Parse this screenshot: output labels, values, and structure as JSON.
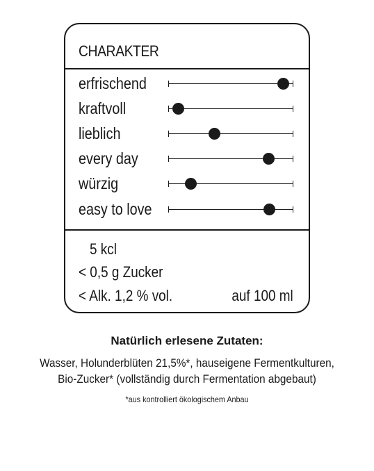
{
  "card": {
    "title": "CHARAKTER",
    "characteristics": [
      {
        "label": "erfrischend",
        "level": 0.92
      },
      {
        "label": "kraftvoll",
        "level": 0.08
      },
      {
        "label": "lieblich",
        "level": 0.37
      },
      {
        "label": "every day",
        "level": 0.8
      },
      {
        "label": "würzig",
        "level": 0.18
      },
      {
        "label": "easy to love",
        "level": 0.81
      }
    ],
    "nutrition": {
      "energy": "5 kcl",
      "sugar": "< 0,5 g Zucker",
      "alcohol": "< Alk. 1,2 % vol.",
      "per": "auf 100 ml"
    }
  },
  "ingredients": {
    "heading": "Natürlich erlesene Zutaten:",
    "line1": "Wasser, Holunderblüten 21,5%*, hauseigene Fermentkulturen,",
    "line2": "Bio-Zucker* (vollständig durch Fermentation abgebaut)",
    "footnote": "*aus kontrolliert ökologischem Anbau"
  }
}
